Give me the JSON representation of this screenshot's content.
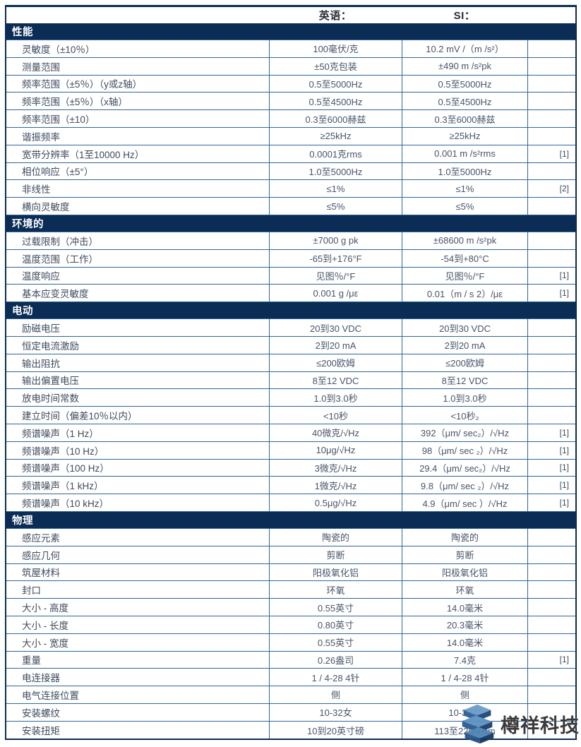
{
  "header": {
    "english_col": "英语：",
    "si_col": "SI："
  },
  "colors": {
    "section_bg": "#0a2c55",
    "grid_border": "#31669c",
    "label_text": "#3e4b5e",
    "value_text": "#47556b",
    "header_text": "#262b36",
    "watermark_text_color": "#3a3a3a",
    "watermark_logo_blue": "#4d83b4",
    "watermark_logo_dark": "#1d4776"
  },
  "watermark": {
    "text": "樽祥科技",
    "icon": "layers-icon"
  },
  "sections": [
    {
      "title": "性能",
      "rows": [
        {
          "label": "灵敏度（±10％）",
          "english": "100毫伏/克",
          "si": "10.2 mV /（m /s²）",
          "note": ""
        },
        {
          "label": "测量范围",
          "english": "±50克包装",
          "si": "±490 m /s²pk",
          "note": ""
        },
        {
          "label": "频率范围（±5％）（y或z轴）",
          "english": "0.5至5000Hz",
          "si": "0.5至5000Hz",
          "note": ""
        },
        {
          "label": "频率范围（±5％）（x轴）",
          "english": "0.5至4500Hz",
          "si": "0.5至4500Hz",
          "note": ""
        },
        {
          "label": "频率范围（±10）",
          "english": "0.3至6000赫兹",
          "si": "0.3至6000赫兹",
          "note": ""
        },
        {
          "label": "谐振频率",
          "english": "≥25kHz",
          "si": "≥25kHz",
          "note": ""
        },
        {
          "label": "宽带分辨率（1至10000 Hz）",
          "english": "0.0001克rms",
          "si": "0.001 m /s²rms",
          "note": "[1]"
        },
        {
          "label": "相位响应（±5°）",
          "english": "1.0至5000Hz",
          "si": "1.0至5000Hz",
          "note": ""
        },
        {
          "label": "非线性",
          "english": "≤1%",
          "si": "≤1%",
          "note": "[2]"
        },
        {
          "label": "横向灵敏度",
          "english": "≤5%",
          "si": "≤5%",
          "note": ""
        }
      ]
    },
    {
      "title": "环境的",
      "rows": [
        {
          "label": "过载限制（冲击）",
          "english": "±7000 g pk",
          "si": "±68600 m /s²pk",
          "note": ""
        },
        {
          "label": "温度范围（工作）",
          "english": "-65到+176°F",
          "si": "-54到+80°C",
          "note": ""
        },
        {
          "label": "温度响应",
          "english": "见图％/°F",
          "si": "见图％/°F",
          "note": "[1]"
        },
        {
          "label": "基本应变灵敏度",
          "english": "0.001 g /με",
          "si": "0.01（m / s 2）/με",
          "note": "[1]"
        }
      ]
    },
    {
      "title": "电动",
      "rows": [
        {
          "label": "励磁电压",
          "english": "20到30 VDC",
          "si": "20到30 VDC",
          "note": ""
        },
        {
          "label": "恒定电流激励",
          "english": "2到20 mA",
          "si": "2到20 mA",
          "note": ""
        },
        {
          "label": "输出阻抗",
          "english": "≤200欧姆",
          "si": "≤200欧姆",
          "note": ""
        },
        {
          "label": "输出偏置电压",
          "english": "8至12 VDC",
          "si": "8至12 VDC",
          "note": ""
        },
        {
          "label": "放电时间常数",
          "english": "1.0到3.0秒",
          "si": "1.0到3.0秒",
          "note": ""
        },
        {
          "label": "建立时间（偏差10％以内）",
          "english": "<10秒",
          "si": "<10秒₂",
          "note": ""
        },
        {
          "label": "频谱噪声（1 Hz）",
          "english": "40微克/√Hz",
          "si": "392（μm/ sec₂）/√Hz",
          "note": "[1]"
        },
        {
          "label": "频谱噪声（10 Hz）",
          "english": "10μg/√Hz",
          "si": "98（μm/ sec ₂）/√Hz",
          "note": "[1]"
        },
        {
          "label": "频谱噪声（100 Hz）",
          "english": "3微克/√Hz",
          "si": "29.4（μm/ sec₂）/√Hz",
          "note": "[1]"
        },
        {
          "label": "频谱噪声（1 kHz）",
          "english": "1微克/√Hz",
          "si": "9.8（μm/ sec ₂）/√Hz",
          "note": "[1]"
        },
        {
          "label": "频谱噪声（10 kHz）",
          "english": "0.5μg/√Hz",
          "si": "4.9（μm/ sec ）/√Hz",
          "note": "[1]"
        }
      ]
    },
    {
      "title": "物理",
      "rows": [
        {
          "label": "感应元素",
          "english": "陶瓷的",
          "si": "陶瓷的",
          "note": ""
        },
        {
          "label": "感应几何",
          "english": "剪断",
          "si": "剪断",
          "note": ""
        },
        {
          "label": "筑屋材料",
          "english": "阳极氧化铝",
          "si": "阳极氧化铝",
          "note": ""
        },
        {
          "label": "封口",
          "english": "环氧",
          "si": "环氧",
          "note": ""
        },
        {
          "label": "大小 - 高度",
          "english": "0.55英寸",
          "si": "14.0毫米",
          "note": ""
        },
        {
          "label": "大小 - 长度",
          "english": "0.80英寸",
          "si": "20.3毫米",
          "note": ""
        },
        {
          "label": "大小 - 宽度",
          "english": "0.55英寸",
          "si": "14.0毫米",
          "note": ""
        },
        {
          "label": "重量",
          "english": "0.26盎司",
          "si": "7.4克",
          "note": "[1]"
        },
        {
          "label": "电连接器",
          "english": "1 / 4-28 4针",
          "si": "1 / 4-28 4针",
          "note": ""
        },
        {
          "label": "电气连接位置",
          "english": "侧",
          "si": "侧",
          "note": ""
        },
        {
          "label": "安装螺纹",
          "english": "10-32女",
          "si": "10-32女",
          "note": ""
        },
        {
          "label": "安装扭矩",
          "english": "10到20英寸磅",
          "si": "113至225N-cm",
          "note": ""
        }
      ]
    }
  ]
}
